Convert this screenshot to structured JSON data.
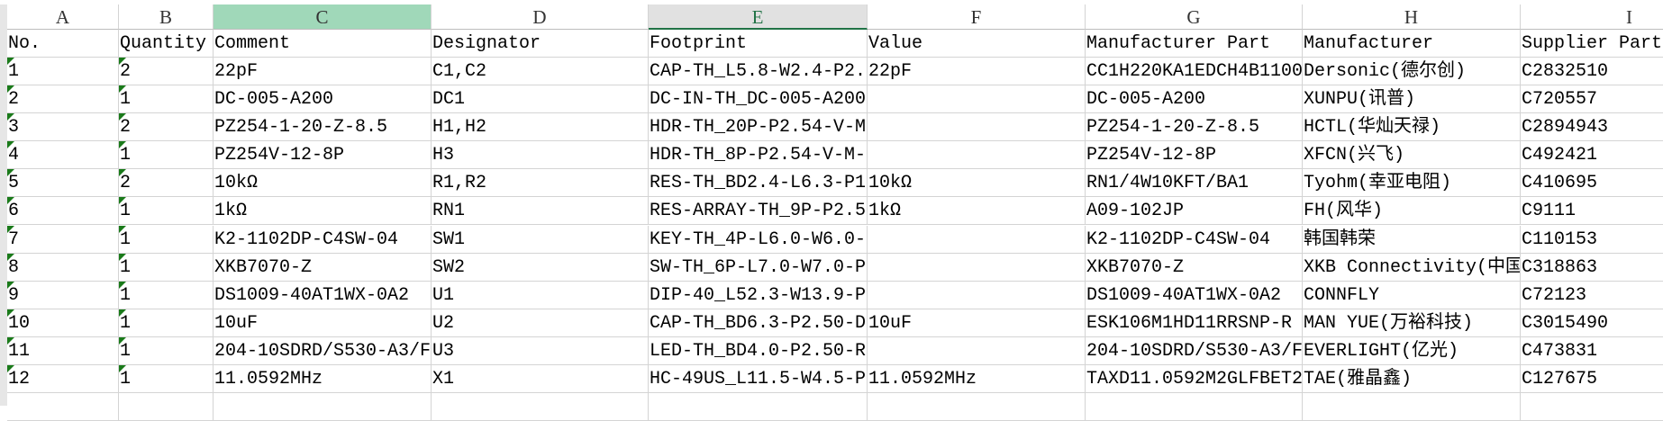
{
  "columns": [
    "A",
    "B",
    "C",
    "D",
    "E",
    "F",
    "G",
    "H",
    "I"
  ],
  "selected_column": "C",
  "active_column": "E",
  "headers": [
    "No.",
    "Quantity",
    "Comment",
    "Designator",
    "Footprint",
    "Value",
    "Manufacturer Part",
    "Manufacturer",
    "Supplier Part"
  ],
  "rows": [
    [
      "1",
      "2",
      "22pF",
      "C1,C2",
      "CAP-TH_L5.8-W2.4-P2.",
      "22pF",
      "CC1H220KA1EDCH4B1100",
      "Dersonic(德尔创)",
      "C2832510"
    ],
    [
      "2",
      "1",
      "DC-005-A200",
      "DC1",
      "DC-IN-TH_DC-005-A200",
      "",
      "DC-005-A200",
      "XUNPU(讯普)",
      "C720557"
    ],
    [
      "3",
      "2",
      "PZ254-1-20-Z-8.5",
      "H1,H2",
      "HDR-TH_20P-P2.54-V-M",
      "",
      "PZ254-1-20-Z-8.5",
      "HCTL(华灿天禄)",
      "C2894943"
    ],
    [
      "4",
      "1",
      "PZ254V-12-8P",
      "H3",
      "HDR-TH_8P-P2.54-V-M-",
      "",
      "PZ254V-12-8P",
      "XFCN(兴飞)",
      "C492421"
    ],
    [
      "5",
      "2",
      "10kΩ",
      "R1,R2",
      "RES-TH_BD2.4-L6.3-P1",
      "10kΩ",
      "RN1/4W10KFT/BA1",
      "Tyohm(幸亚电阻)",
      "C410695"
    ],
    [
      "6",
      "1",
      "1kΩ",
      "RN1",
      "RES-ARRAY-TH_9P-P2.5",
      "1kΩ",
      "A09-102JP",
      "FH(风华)",
      "C9111"
    ],
    [
      "7",
      "1",
      "K2-1102DP-C4SW-04",
      "SW1",
      "KEY-TH_4P-L6.0-W6.0-",
      "",
      "K2-1102DP-C4SW-04",
      "韩国韩荣",
      "C110153"
    ],
    [
      "8",
      "1",
      "XKB7070-Z",
      "SW2",
      "SW-TH_6P-L7.0-W7.0-P",
      "",
      "XKB7070-Z",
      "XKB Connectivity(中国",
      "C318863"
    ],
    [
      "9",
      "1",
      "DS1009-40AT1WX-0A2",
      "U1",
      "DIP-40_L52.3-W13.9-P",
      "",
      "DS1009-40AT1WX-0A2",
      "CONNFLY",
      "C72123"
    ],
    [
      "10",
      "1",
      "10uF",
      "U2",
      "CAP-TH_BD6.3-P2.50-D",
      "10uF",
      "ESK106M1HD11RRSNP-R",
      "MAN YUE(万裕科技)",
      "C3015490"
    ],
    [
      "11",
      "1",
      "204-10SDRD/S530-A3/F",
      "U3",
      "LED-TH_BD4.0-P2.50-R",
      "",
      "204-10SDRD/S530-A3/F",
      "EVERLIGHT(亿光)",
      "C473831"
    ],
    [
      "12",
      "1",
      "11.0592MHz",
      "X1",
      "HC-49US_L11.5-W4.5-P",
      "11.0592MHz",
      "TAXD11.0592M2GLFBET2",
      "TAE(雅晶鑫)",
      "C127675"
    ]
  ],
  "colors": {
    "selected_header": "#a0d8b9",
    "active_header_accent": "#217346",
    "text_number_indicator": "#1a7a1a",
    "grid": "#d4d4d4"
  }
}
